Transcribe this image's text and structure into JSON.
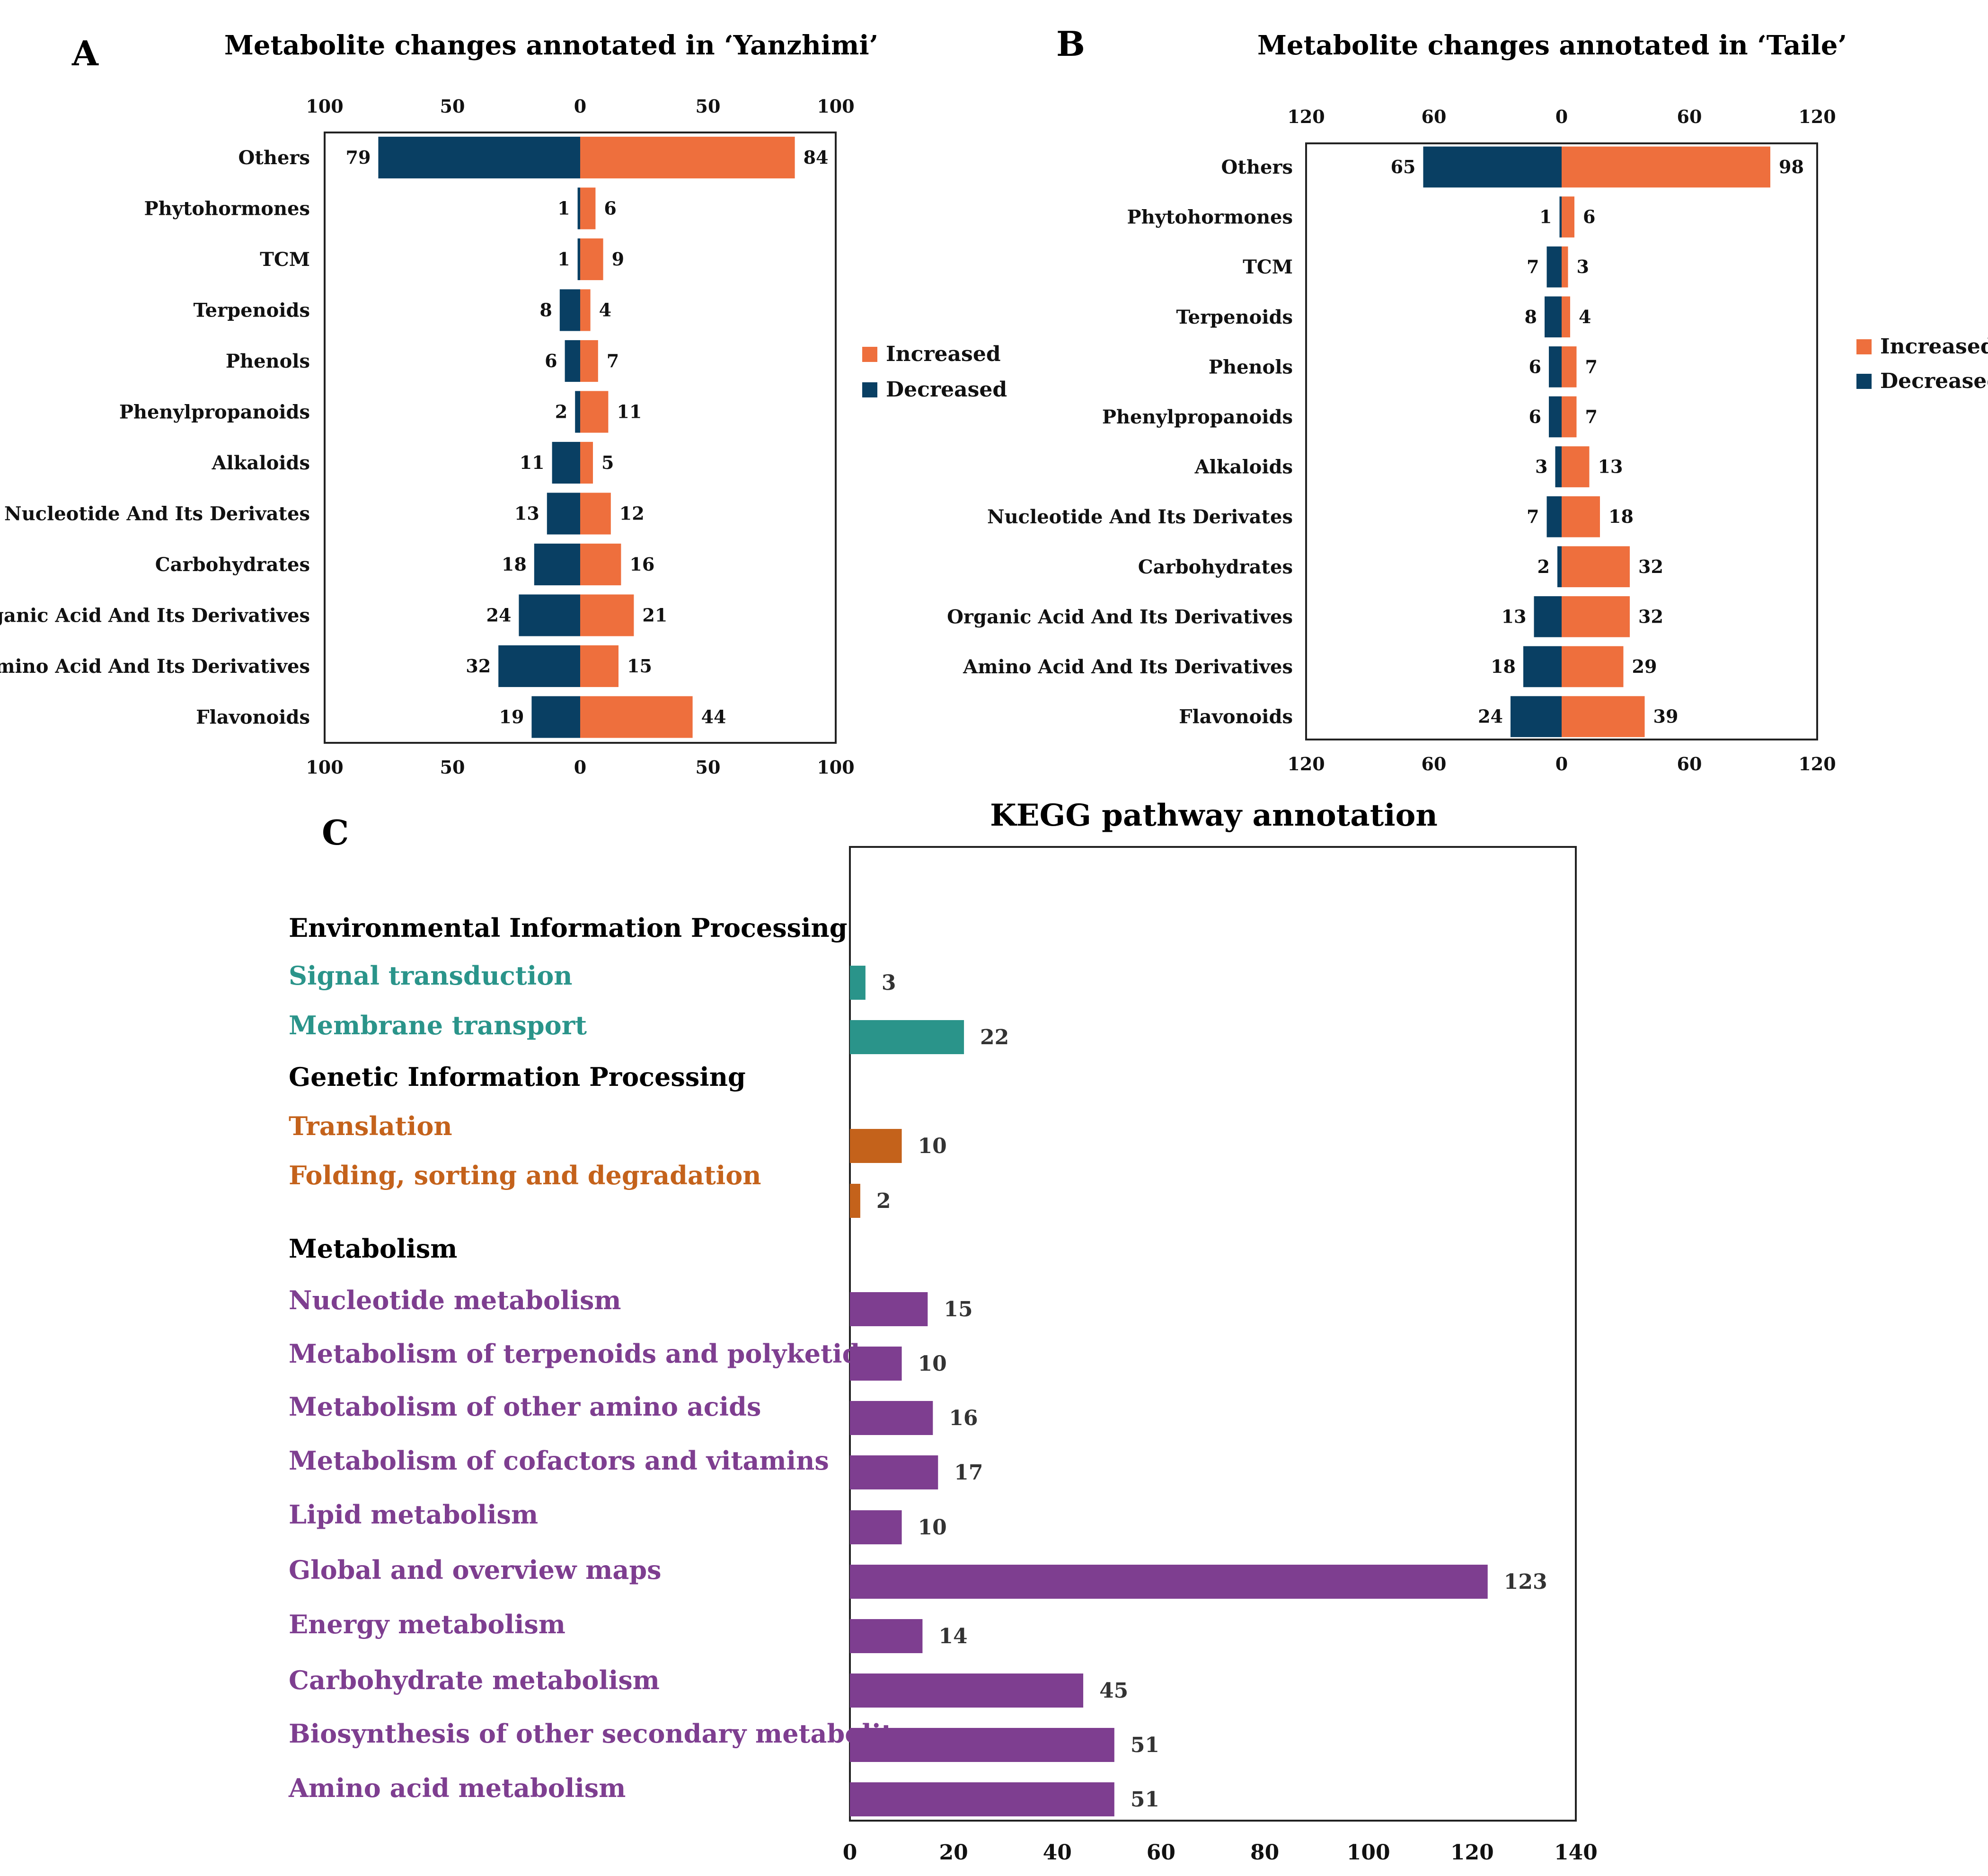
{
  "colors": {
    "increased": "#EE6F3D",
    "decreased": "#093F63",
    "env_info": "#2A948A",
    "gen_info": "#C4621B",
    "metabolism": "#7E3E90",
    "heading": "#000000"
  },
  "panels": {
    "a": {
      "letter": "A"
    },
    "b": {
      "letter": "B"
    },
    "c": {
      "letter": "C"
    }
  },
  "legend": {
    "increased": "Increased",
    "decreased": "Decreased"
  },
  "chart_data": [
    {
      "id": "A",
      "type": "bar",
      "orientation": "horizontal-diverging",
      "title": "Metabolite changes annotated in ‘Yanzhimi’",
      "categories": [
        "Others",
        "Phytohormones",
        "TCM",
        "Terpenoids",
        "Phenols",
        "Phenylpropanoids",
        "Alkaloids",
        "Nucleotide And Its Derivates",
        "Carbohydrates",
        "Organic Acid And Its Derivatives",
        "Amino Acid And Its Derivatives",
        "Flavonoids"
      ],
      "series": [
        {
          "name": "Increased",
          "values": [
            84,
            6,
            9,
            4,
            7,
            11,
            5,
            12,
            16,
            21,
            15,
            44
          ]
        },
        {
          "name": "Decreased",
          "values": [
            79,
            1,
            1,
            8,
            6,
            2,
            11,
            13,
            18,
            24,
            32,
            19
          ]
        }
      ],
      "xlim": [
        -100,
        100
      ],
      "ticks": [
        -100,
        -50,
        0,
        50,
        100
      ],
      "tick_labels": [
        "100",
        "50",
        "0",
        "50",
        "100"
      ],
      "legend": "right"
    },
    {
      "id": "B",
      "type": "bar",
      "orientation": "horizontal-diverging",
      "title": "Metabolite changes annotated in ‘Taile’",
      "categories": [
        "Others",
        "Phytohormones",
        "TCM",
        "Terpenoids",
        "Phenols",
        "Phenylpropanoids",
        "Alkaloids",
        "Nucleotide And Its Derivates",
        "Carbohydrates",
        "Organic Acid And Its Derivatives",
        "Amino Acid And Its Derivatives",
        "Flavonoids"
      ],
      "series": [
        {
          "name": "Increased",
          "values": [
            98,
            6,
            3,
            4,
            7,
            7,
            13,
            18,
            32,
            32,
            29,
            39
          ]
        },
        {
          "name": "Decreased",
          "values": [
            65,
            1,
            7,
            8,
            6,
            6,
            3,
            7,
            2,
            13,
            18,
            24
          ]
        }
      ],
      "xlim": [
        -120,
        120
      ],
      "ticks": [
        -120,
        -60,
        0,
        60,
        120
      ],
      "tick_labels": [
        "120",
        "60",
        "0",
        "60",
        "120"
      ],
      "legend": "right"
    },
    {
      "id": "C",
      "type": "bar",
      "orientation": "horizontal",
      "title": "KEGG pathway annotation",
      "xlim": [
        0,
        140
      ],
      "ticks": [
        0,
        20,
        40,
        60,
        80,
        100,
        120,
        140
      ],
      "groups": [
        {
          "heading": "Environmental Information Processing",
          "color": "#2A948A",
          "items": [
            {
              "label": "Signal transduction",
              "value": 3
            },
            {
              "label": "Membrane transport",
              "value": 22
            }
          ]
        },
        {
          "heading": "Genetic Information Processing",
          "color": "#C4621B",
          "items": [
            {
              "label": "Translation",
              "value": 10
            },
            {
              "label": "Folding, sorting and degradation",
              "value": 2
            }
          ]
        },
        {
          "heading": "Metabolism",
          "color": "#7E3E90",
          "items": [
            {
              "label": "Nucleotide metabolism",
              "value": 15
            },
            {
              "label": "Metabolism of terpenoids and polyketides",
              "value": 10
            },
            {
              "label": "Metabolism of other amino acids",
              "value": 16
            },
            {
              "label": "Metabolism of cofactors and vitamins",
              "value": 17
            },
            {
              "label": "Lipid metabolism",
              "value": 10
            },
            {
              "label": "Global and overview maps",
              "value": 123
            },
            {
              "label": "Energy metabolism",
              "value": 14
            },
            {
              "label": "Carbohydrate metabolism",
              "value": 45
            },
            {
              "label": "Biosynthesis of other secondary metabolites",
              "value": 51
            },
            {
              "label": "Amino acid metabolism",
              "value": 51
            }
          ]
        }
      ]
    }
  ]
}
